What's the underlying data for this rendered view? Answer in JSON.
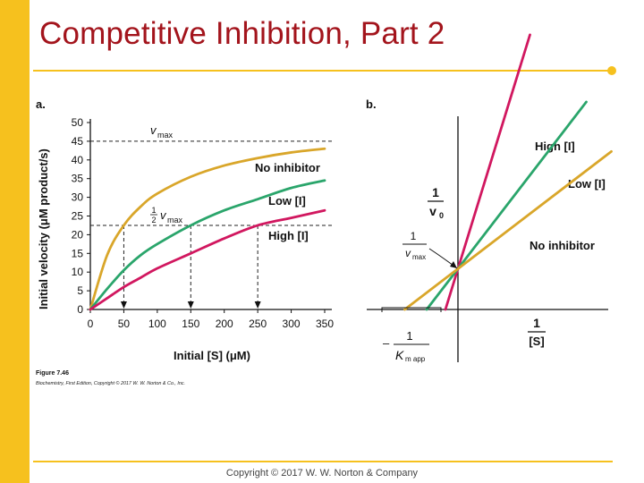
{
  "slide": {
    "title": "Competitive Inhibition, Part 2",
    "footer": "Copyright © 2017 W. W. Norton & Company"
  },
  "figure": {
    "caption_title": "Figure 7.46",
    "caption_source": "Biochemistry, First Edition, Copyright © 2017 W. W. Norton & Co., Inc."
  },
  "colors": {
    "accent": "#f6c11e",
    "title": "#a3141c",
    "no_inhibitor": "#d9a62a",
    "low_inhibitor": "#2aa56b",
    "high_inhibitor": "#d1175f"
  },
  "chart_data": [
    {
      "panel": "a.",
      "type": "line",
      "xlabel": "Initial [S] (μM)",
      "ylabel": "Initial velocity (μM product/s)",
      "xlim": [
        0,
        350
      ],
      "ylim": [
        0,
        50
      ],
      "xticks": [
        0,
        50,
        100,
        150,
        200,
        250,
        300,
        350
      ],
      "yticks": [
        0,
        5,
        10,
        15,
        20,
        25,
        30,
        35,
        40,
        45,
        50
      ],
      "vmax": 45,
      "half_vmax": 22.5,
      "vmax_label": "v",
      "vmax_sub": "max",
      "half_label_num": "1",
      "half_label_den": "2",
      "half_label_v": "v",
      "half_label_sub": "max",
      "series": [
        {
          "name": "No inhibitor",
          "key": "no",
          "x": [
            0,
            25,
            50,
            75,
            100,
            150,
            200,
            250,
            300,
            350
          ],
          "values": [
            0,
            14.5,
            22.5,
            27.5,
            31,
            35.5,
            38.5,
            40.5,
            42,
            43
          ]
        },
        {
          "name": "Low [I]",
          "key": "low",
          "x": [
            0,
            25,
            50,
            75,
            100,
            150,
            200,
            250,
            300,
            350
          ],
          "values": [
            0,
            5.5,
            10.5,
            14.5,
            17.5,
            22.5,
            26.5,
            29.5,
            32.5,
            34.5
          ]
        },
        {
          "name": "High [I]",
          "key": "high",
          "x": [
            0,
            25,
            50,
            75,
            100,
            150,
            200,
            250,
            300,
            350
          ],
          "values": [
            0,
            3,
            6,
            8.5,
            11,
            15,
            19,
            22.5,
            24.5,
            26.5
          ]
        }
      ],
      "km_markers": [
        50,
        150,
        250
      ],
      "grid": false
    },
    {
      "panel": "b.",
      "type": "line",
      "plot_kind": "double-reciprocal",
      "xlabel_num": "1",
      "xlabel_den": "[S]",
      "ylabel_num": "1",
      "ylabel_den": "v",
      "ylabel_sub": "0",
      "intercept_num": "1",
      "intercept_den": "v",
      "intercept_sub": "max",
      "km_app_num": "1",
      "km_app_prefix": "–",
      "km_app_den": "K",
      "km_app_sub": "m app",
      "series": [
        {
          "name": "High [I]",
          "key": "high",
          "x_intercept": -0.4,
          "slope": 3.4
        },
        {
          "name": "Low [I]",
          "key": "low",
          "x_intercept": -1.0,
          "slope": 2.1
        },
        {
          "name": "No inhibitor",
          "key": "no",
          "x_intercept": -1.7,
          "slope": 0.95
        }
      ],
      "grid": false
    }
  ]
}
